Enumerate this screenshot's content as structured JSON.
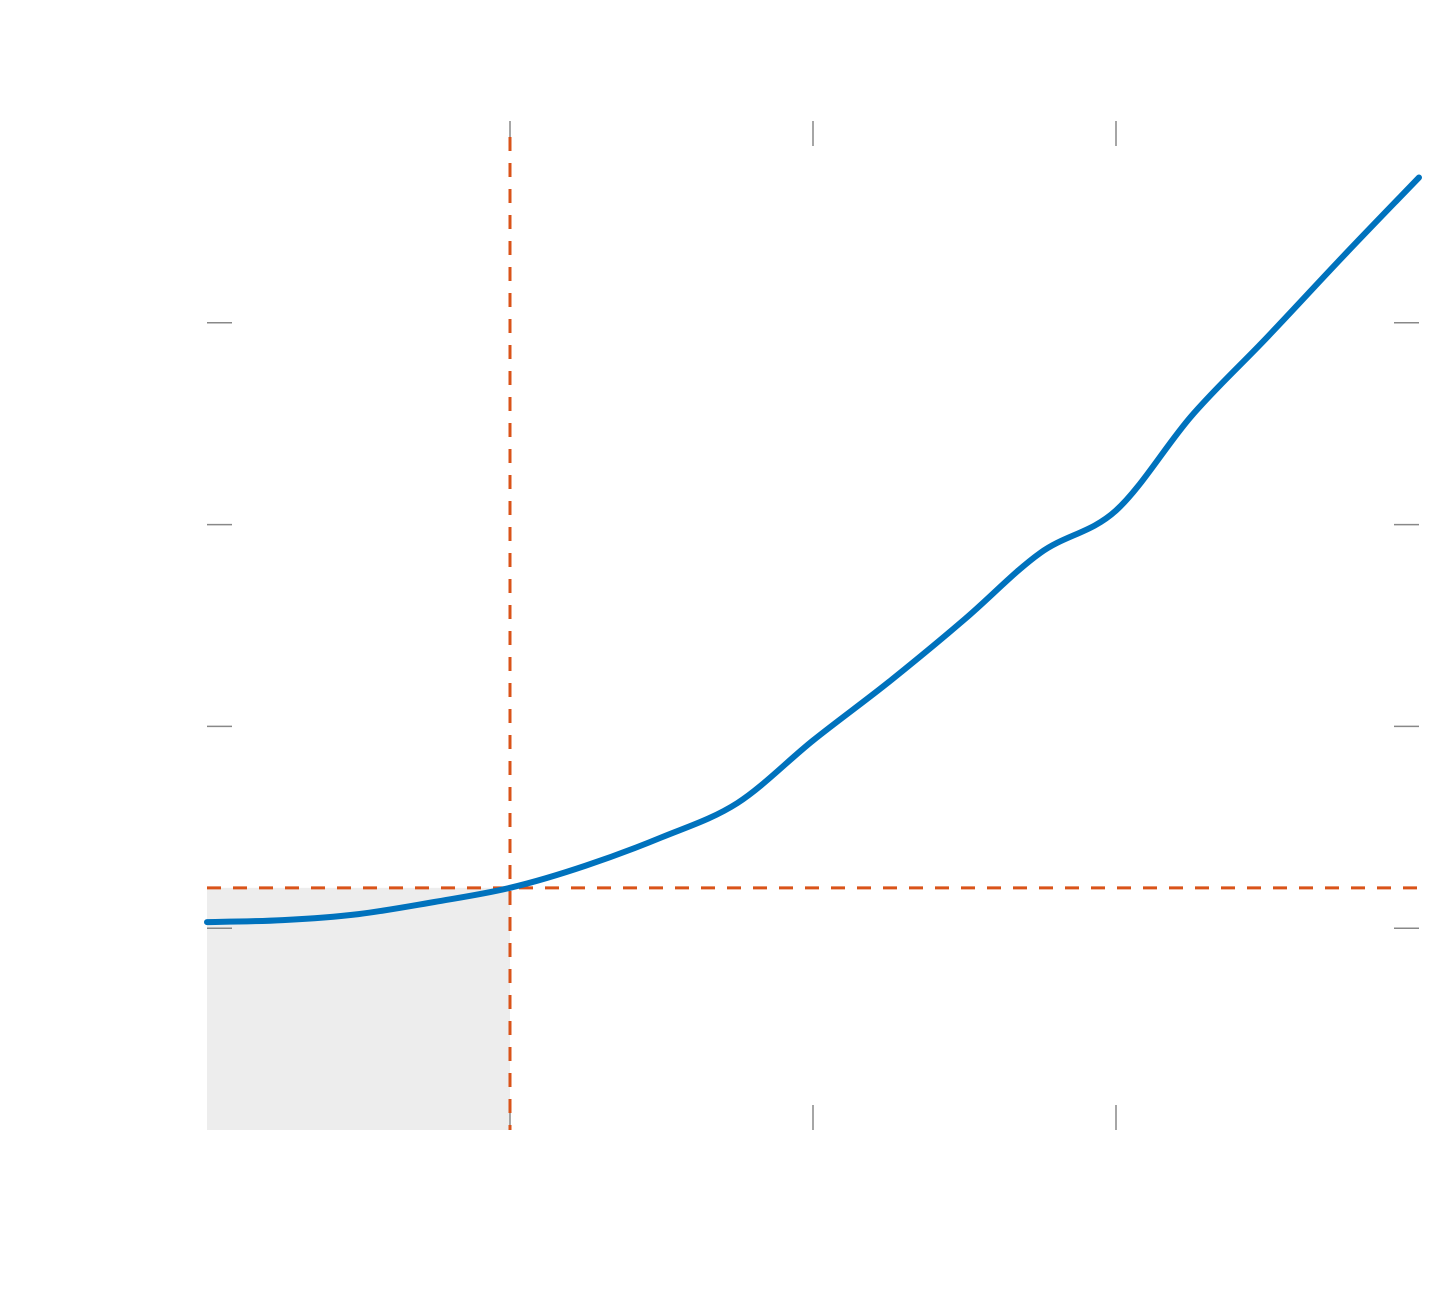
{
  "chart_data": {
    "type": "line",
    "title": "",
    "xlabel": "",
    "ylabel": "",
    "xlim": [
      0,
      4
    ],
    "ylim": [
      -1,
      4
    ],
    "x_ticks": [
      0,
      1,
      2,
      3,
      4
    ],
    "y_ticks": [
      -1,
      0,
      1,
      2,
      3,
      4
    ],
    "grid": false,
    "legend": "none",
    "series": [
      {
        "color": "#0072BD",
        "style": "solid",
        "x": [
          0,
          0.25,
          0.5,
          0.75,
          1,
          1.25,
          1.5,
          1.75,
          2,
          2.25,
          2.5,
          2.75,
          3,
          3.25,
          3.5,
          3.75,
          4
        ],
        "y": [
          0.03,
          0.04,
          0.07,
          0.13,
          0.2,
          0.31,
          0.45,
          0.62,
          0.93,
          1.22,
          1.53,
          1.86,
          2.07,
          2.54,
          2.93,
          3.33,
          3.72
        ]
      }
    ],
    "reference_lines": [
      {
        "orientation": "vertical",
        "x": 1,
        "color": "#D95319",
        "style": "dashed"
      },
      {
        "orientation": "horizontal",
        "y": 0.2,
        "color": "#D95319",
        "style": "dashed"
      }
    ],
    "shaded_region": {
      "x": [
        0,
        1
      ],
      "y": [
        -1,
        0.2
      ],
      "color": "#ededed"
    }
  }
}
